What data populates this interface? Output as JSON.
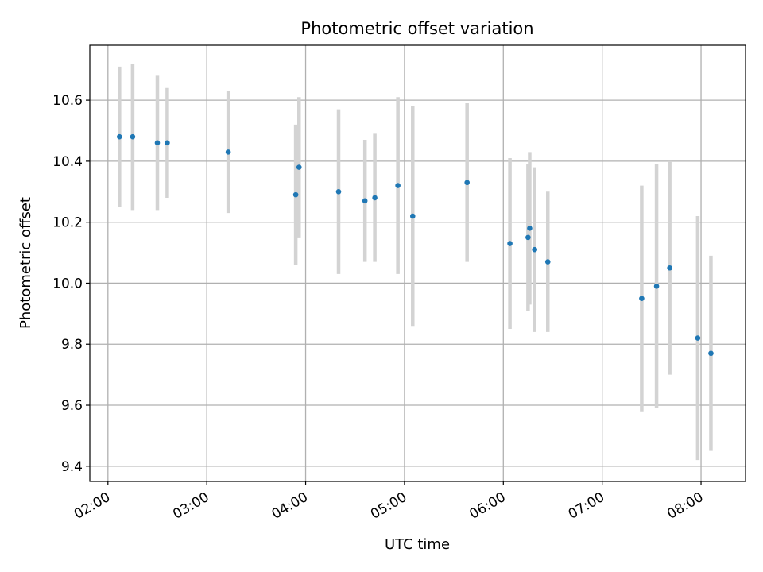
{
  "chart_data": {
    "type": "scatter",
    "title": "Photometric offset variation",
    "xlabel": "UTC time",
    "ylabel": "Photometric offset",
    "grid": true,
    "xlim": [
      "01:49",
      "08:27"
    ],
    "ylim": [
      9.35,
      10.78
    ],
    "x_ticks": [
      "02:00",
      "03:00",
      "04:00",
      "05:00",
      "06:00",
      "07:00",
      "08:00"
    ],
    "y_ticks": [
      9.4,
      9.6,
      9.8,
      10.0,
      10.2,
      10.4,
      10.6
    ],
    "y_tick_labels": [
      "9.4",
      "9.6",
      "9.8",
      "10.0",
      "10.2",
      "10.4",
      "10.6"
    ],
    "errorbar_color": "#d3d3d3",
    "marker_color": "#1f77b4",
    "points": [
      {
        "t": "02:07",
        "y": 10.48,
        "err": 0.23
      },
      {
        "t": "02:15",
        "y": 10.48,
        "err": 0.24
      },
      {
        "t": "02:30",
        "y": 10.46,
        "err": 0.22
      },
      {
        "t": "02:36",
        "y": 10.46,
        "err": 0.18
      },
      {
        "t": "03:13",
        "y": 10.43,
        "err": 0.2
      },
      {
        "t": "03:54",
        "y": 10.29,
        "err": 0.23
      },
      {
        "t": "03:56",
        "y": 10.38,
        "err": 0.23
      },
      {
        "t": "04:20",
        "y": 10.3,
        "err": 0.27
      },
      {
        "t": "04:36",
        "y": 10.27,
        "err": 0.2
      },
      {
        "t": "04:42",
        "y": 10.28,
        "err": 0.21
      },
      {
        "t": "04:56",
        "y": 10.32,
        "err": 0.29
      },
      {
        "t": "05:05",
        "y": 10.22,
        "err": 0.36
      },
      {
        "t": "05:38",
        "y": 10.33,
        "err": 0.26
      },
      {
        "t": "06:04",
        "y": 10.13,
        "err": 0.28
      },
      {
        "t": "06:15",
        "y": 10.15,
        "err": 0.24
      },
      {
        "t": "06:16",
        "y": 10.18,
        "err": 0.25
      },
      {
        "t": "06:19",
        "y": 10.11,
        "err": 0.27
      },
      {
        "t": "06:27",
        "y": 10.07,
        "err": 0.23
      },
      {
        "t": "07:24",
        "y": 9.95,
        "err": 0.37
      },
      {
        "t": "07:33",
        "y": 9.99,
        "err": 0.4
      },
      {
        "t": "07:41",
        "y": 10.05,
        "err": 0.35
      },
      {
        "t": "07:58",
        "y": 9.82,
        "err": 0.4
      },
      {
        "t": "08:06",
        "y": 9.77,
        "err": 0.32
      }
    ]
  }
}
